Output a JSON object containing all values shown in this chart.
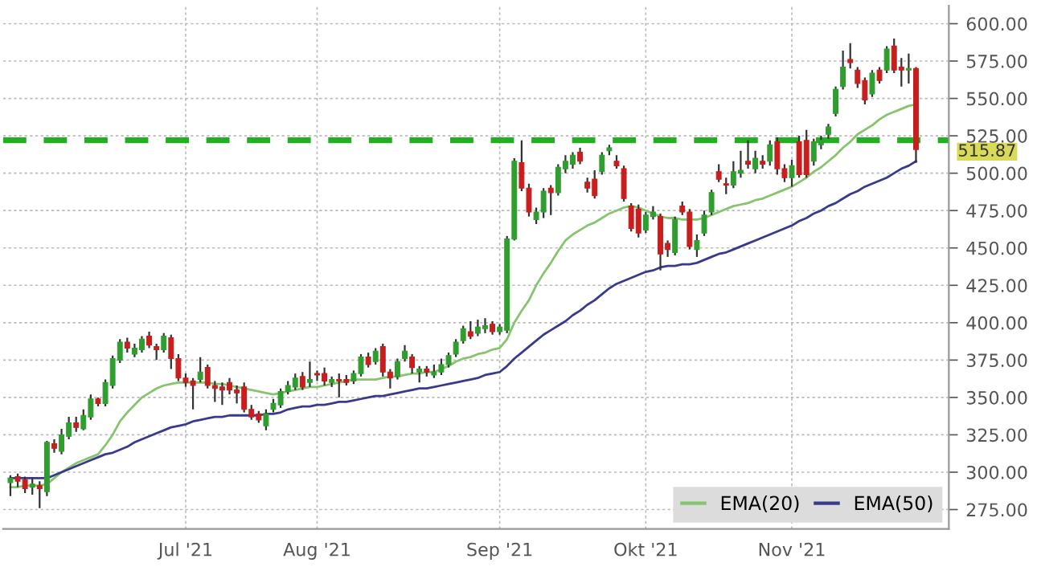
{
  "chart_data": {
    "type": "candlestick",
    "categories": [
      null,
      null,
      null,
      null,
      null,
      null,
      null,
      null,
      null,
      null,
      null,
      null,
      null,
      null,
      null,
      null,
      null,
      null,
      null,
      null,
      null,
      null,
      null,
      null,
      "Jul '21",
      null,
      null,
      null,
      null,
      null,
      null,
      null,
      null,
      null,
      null,
      null,
      null,
      null,
      null,
      null,
      null,
      null,
      "Aug '21",
      null,
      null,
      null,
      null,
      null,
      null,
      null,
      null,
      null,
      null,
      null,
      null,
      null,
      null,
      null,
      null,
      null,
      null,
      null,
      null,
      null,
      null,
      null,
      null,
      "Sep '21",
      null,
      null,
      null,
      null,
      null,
      null,
      null,
      null,
      null,
      null,
      null,
      null,
      null,
      null,
      null,
      null,
      null,
      null,
      null,
      "Okt '21",
      null,
      null,
      null,
      null,
      null,
      null,
      null,
      null,
      null,
      null,
      null,
      null,
      null,
      null,
      null,
      null,
      null,
      null,
      null,
      "Nov '21",
      null,
      null,
      null,
      null,
      null,
      null,
      null,
      null,
      null,
      null,
      null,
      null,
      null,
      null,
      null,
      null,
      null
    ],
    "ohlc": [
      [
        293,
        298,
        284,
        296
      ],
      [
        297,
        299,
        290,
        294
      ],
      [
        295,
        297,
        286,
        289
      ],
      [
        290,
        296,
        285,
        292
      ],
      [
        291,
        294,
        276,
        289
      ],
      [
        287,
        321,
        284,
        320
      ],
      [
        319,
        322,
        313,
        316
      ],
      [
        314,
        329,
        312,
        325
      ],
      [
        324,
        337,
        322,
        333
      ],
      [
        333,
        337,
        327,
        330
      ],
      [
        329,
        342,
        328,
        338
      ],
      [
        337,
        352,
        335,
        349
      ],
      [
        349,
        350,
        344,
        346
      ],
      [
        346,
        362,
        344,
        360
      ],
      [
        358,
        378,
        356,
        376
      ],
      [
        375,
        389,
        373,
        387
      ],
      [
        387,
        390,
        380,
        383
      ],
      [
        379,
        386,
        377,
        383
      ],
      [
        382,
        391,
        380,
        389
      ],
      [
        391,
        394,
        383,
        385
      ],
      [
        384,
        386,
        375,
        382
      ],
      [
        382,
        393,
        380,
        391
      ],
      [
        390,
        392,
        369,
        376
      ],
      [
        376,
        379,
        361,
        363
      ],
      [
        363,
        366,
        357,
        360
      ],
      [
        361,
        363,
        342,
        358
      ],
      [
        362,
        377,
        360,
        367
      ],
      [
        370,
        372,
        356,
        358
      ],
      [
        358,
        361,
        347,
        356
      ],
      [
        357,
        360,
        345,
        355
      ],
      [
        360,
        363,
        352,
        355
      ],
      [
        355,
        358,
        346,
        353
      ],
      [
        357,
        360,
        340,
        342
      ],
      [
        342,
        345,
        335,
        337
      ],
      [
        339,
        341,
        333,
        335
      ],
      [
        331,
        342,
        328,
        339
      ],
      [
        342,
        349,
        340,
        346
      ],
      [
        345,
        356,
        343,
        354
      ],
      [
        354,
        361,
        352,
        358
      ],
      [
        357,
        366,
        355,
        363
      ],
      [
        364,
        367,
        355,
        357
      ],
      [
        360,
        374,
        357,
        362
      ],
      [
        366,
        368,
        361,
        365
      ],
      [
        366,
        370,
        358,
        361
      ],
      [
        360,
        364,
        357,
        362
      ],
      [
        362,
        366,
        350,
        361
      ],
      [
        362,
        365,
        358,
        360
      ],
      [
        361,
        368,
        359,
        366
      ],
      [
        366,
        379,
        364,
        377
      ],
      [
        377,
        380,
        370,
        372
      ],
      [
        374,
        383,
        372,
        381
      ],
      [
        384,
        386,
        364,
        367
      ],
      [
        367,
        369,
        356,
        363
      ],
      [
        364,
        376,
        362,
        374
      ],
      [
        376,
        385,
        374,
        381
      ],
      [
        377,
        379,
        366,
        370
      ],
      [
        367,
        371,
        360,
        369
      ],
      [
        369,
        371,
        364,
        367
      ],
      [
        365,
        372,
        363,
        367
      ],
      [
        367,
        376,
        365,
        372
      ],
      [
        372,
        380,
        370,
        378
      ],
      [
        379,
        389,
        377,
        387
      ],
      [
        388,
        398,
        386,
        396
      ],
      [
        394,
        401,
        389,
        391
      ],
      [
        393,
        402,
        391,
        397
      ],
      [
        396,
        403,
        393,
        398
      ],
      [
        399,
        401,
        392,
        394
      ],
      [
        394,
        399,
        392,
        397
      ],
      [
        395,
        458,
        393,
        456
      ],
      [
        456,
        510,
        455,
        508
      ],
      [
        507,
        522,
        488,
        490
      ],
      [
        490,
        493,
        471,
        474
      ],
      [
        469,
        477,
        466,
        474
      ],
      [
        474,
        490,
        470,
        488
      ],
      [
        490,
        492,
        472,
        487
      ],
      [
        487,
        506,
        485,
        504
      ],
      [
        503,
        512,
        500,
        508
      ],
      [
        506,
        514,
        503,
        512
      ],
      [
        514,
        517,
        506,
        508
      ],
      [
        494,
        497,
        487,
        490
      ],
      [
        496,
        502,
        483,
        485
      ],
      [
        501,
        514,
        499,
        512
      ],
      [
        515,
        519,
        512,
        517
      ],
      [
        508,
        512,
        503,
        505
      ],
      [
        503,
        505,
        481,
        483
      ],
      [
        478,
        480,
        461,
        463
      ],
      [
        476,
        479,
        457,
        460
      ],
      [
        462,
        474,
        460,
        472
      ],
      [
        471,
        478,
        469,
        474
      ],
      [
        471,
        473,
        435,
        446
      ],
      [
        453,
        455,
        444,
        449
      ],
      [
        447,
        471,
        445,
        469
      ],
      [
        478,
        481,
        472,
        474
      ],
      [
        474,
        476,
        449,
        451
      ],
      [
        449,
        459,
        444,
        455
      ],
      [
        460,
        475,
        458,
        472
      ],
      [
        474,
        489,
        472,
        487
      ],
      [
        501,
        506,
        494,
        496
      ],
      [
        493,
        497,
        486,
        492
      ],
      [
        492,
        508,
        490,
        501
      ],
      [
        500,
        515,
        497,
        502
      ],
      [
        508,
        522,
        503,
        506
      ],
      [
        503,
        515,
        500,
        510
      ],
      [
        508,
        512,
        503,
        506
      ],
      [
        508,
        522,
        505,
        519
      ],
      [
        521,
        524,
        499,
        503
      ],
      [
        503,
        506,
        494,
        497
      ],
      [
        497,
        509,
        491,
        505
      ],
      [
        521,
        525,
        497,
        499
      ],
      [
        522,
        529,
        497,
        499
      ],
      [
        508,
        523,
        505,
        521
      ],
      [
        519,
        525,
        516,
        522
      ],
      [
        526,
        533,
        523,
        531
      ],
      [
        540,
        558,
        538,
        556
      ],
      [
        558,
        582,
        556,
        571
      ],
      [
        576,
        587,
        570,
        574
      ],
      [
        569,
        571,
        557,
        560
      ],
      [
        562,
        564,
        546,
        549
      ],
      [
        553,
        569,
        551,
        567
      ],
      [
        569,
        571,
        560,
        562
      ],
      [
        569,
        585,
        567,
        583
      ],
      [
        585,
        590,
        567,
        569
      ],
      [
        571,
        577,
        558,
        569
      ],
      [
        569,
        580,
        560,
        570
      ],
      [
        570,
        571,
        507,
        515.87
      ]
    ],
    "colors": [
      "#2f9e2f",
      "#c81e1e",
      "#c81e1e",
      "#2f9e2f",
      "#c81e1e",
      "#2f9e2f",
      "#c81e1e",
      "#2f9e2f",
      "#2f9e2f",
      "#c81e1e",
      "#2f9e2f",
      "#2f9e2f",
      "#c81e1e",
      "#2f9e2f",
      "#2f9e2f",
      "#2f9e2f",
      "#c81e1e",
      "#2f9e2f",
      "#2f9e2f",
      "#c81e1e",
      "#c81e1e",
      "#2f9e2f",
      "#c81e1e",
      "#c81e1e",
      "#c81e1e",
      "#c81e1e",
      "#2f9e2f",
      "#c81e1e",
      "#c81e1e",
      "#c81e1e",
      "#c81e1e",
      "#c81e1e",
      "#c81e1e",
      "#c81e1e",
      "#c81e1e",
      "#2f9e2f",
      "#2f9e2f",
      "#2f9e2f",
      "#2f9e2f",
      "#2f9e2f",
      "#c81e1e",
      "#2f9e2f",
      "#c81e1e",
      "#c81e1e",
      "#2f9e2f",
      "#c81e1e",
      "#c81e1e",
      "#2f9e2f",
      "#2f9e2f",
      "#c81e1e",
      "#2f9e2f",
      "#c81e1e",
      "#c81e1e",
      "#2f9e2f",
      "#2f9e2f",
      "#c81e1e",
      "#2f9e2f",
      "#c81e1e",
      "#2f9e2f",
      "#2f9e2f",
      "#2f9e2f",
      "#2f9e2f",
      "#2f9e2f",
      "#c81e1e",
      "#2f9e2f",
      "#2f9e2f",
      "#c81e1e",
      "#2f9e2f",
      "#2f9e2f",
      "#2f9e2f",
      "#c81e1e",
      "#c81e1e",
      "#2f9e2f",
      "#2f9e2f",
      "#c81e1e",
      "#2f9e2f",
      "#2f9e2f",
      "#2f9e2f",
      "#c81e1e",
      "#c81e1e",
      "#c81e1e",
      "#2f9e2f",
      "#2f9e2f",
      "#c81e1e",
      "#c81e1e",
      "#c81e1e",
      "#c81e1e",
      "#2f9e2f",
      "#2f9e2f",
      "#c81e1e",
      "#c81e1e",
      "#2f9e2f",
      "#c81e1e",
      "#c81e1e",
      "#2f9e2f",
      "#2f9e2f",
      "#2f9e2f",
      "#c81e1e",
      "#c81e1e",
      "#2f9e2f",
      "#2f9e2f",
      "#c81e1e",
      "#2f9e2f",
      "#c81e1e",
      "#2f9e2f",
      "#c81e1e",
      "#c81e1e",
      "#2f9e2f",
      "#c81e1e",
      "#c81e1e",
      "#2f9e2f",
      "#2f9e2f",
      "#2f9e2f",
      "#2f9e2f",
      "#2f9e2f",
      "#c81e1e",
      "#c81e1e",
      "#c81e1e",
      "#2f9e2f",
      "#c81e1e",
      "#2f9e2f",
      "#c81e1e",
      "#c81e1e",
      "#2f9e2f",
      "#c81e1e"
    ],
    "series": [
      {
        "name": "EMA(20)",
        "type": "line",
        "color": "#86c46e",
        "values": [
          290,
          290,
          291,
          291,
          291,
          292,
          296,
          300,
          303,
          306,
          308,
          310,
          312,
          318,
          325,
          334,
          340,
          345,
          350,
          353,
          356,
          358,
          359,
          360,
          360,
          360,
          360,
          360,
          359,
          359,
          358,
          357,
          356,
          355,
          354,
          353,
          352,
          353,
          354,
          355,
          356,
          357,
          357,
          358,
          359,
          360,
          361,
          362,
          362,
          362,
          362,
          363,
          364,
          364,
          365,
          366,
          366,
          367,
          367,
          369,
          371,
          374,
          376,
          377,
          379,
          380,
          382,
          383,
          389,
          400,
          408,
          415,
          425,
          433,
          440,
          448,
          455,
          459,
          462,
          465,
          467,
          470,
          473,
          475,
          477,
          478,
          477,
          475,
          473,
          471,
          470,
          470,
          469,
          469,
          469,
          470,
          472,
          474,
          476,
          478,
          479,
          480,
          482,
          483,
          485,
          487,
          489,
          491,
          494,
          497,
          501,
          504,
          508,
          512,
          517,
          521,
          526,
          529,
          532,
          536,
          539,
          541,
          543,
          545,
          546
        ]
      },
      {
        "name": "EMA(50)",
        "type": "line",
        "color": "#3a3a8c",
        "values": [
          296,
          296,
          296,
          296,
          296,
          296,
          298,
          300,
          302,
          304,
          306,
          308,
          310,
          312,
          313,
          315,
          317,
          320,
          322,
          324,
          326,
          328,
          330,
          331,
          332,
          334,
          335,
          336,
          337,
          337,
          338,
          338,
          338,
          338,
          338,
          339,
          339,
          340,
          342,
          343,
          344,
          344,
          345,
          345,
          346,
          347,
          347,
          348,
          349,
          350,
          351,
          351,
          352,
          353,
          354,
          355,
          356,
          356,
          357,
          358,
          359,
          360,
          361,
          362,
          363,
          365,
          366,
          367,
          371,
          376,
          380,
          384,
          388,
          392,
          395,
          398,
          401,
          405,
          408,
          412,
          415,
          419,
          423,
          426,
          428,
          430,
          432,
          434,
          435,
          437,
          438,
          438,
          439,
          439,
          440,
          442,
          444,
          446,
          447,
          449,
          451,
          453,
          455,
          457,
          459,
          461,
          463,
          465,
          468,
          470,
          473,
          475,
          478,
          480,
          483,
          486,
          488,
          491,
          493,
          495,
          497,
          500,
          503,
          505,
          508
        ]
      }
    ],
    "ref_lines": [
      {
        "axis": "y",
        "value": 522,
        "color": "#22b022",
        "line_style": "dashed"
      }
    ],
    "annotations": [
      "515.87"
    ],
    "ylim": [
      262,
      612
    ],
    "yticks": [
      {
        "value": 275,
        "label": "275.00"
      },
      {
        "value": 300,
        "label": "300.00"
      },
      {
        "value": 325,
        "label": "325.00"
      },
      {
        "value": 350,
        "label": "350.00"
      },
      {
        "value": 375,
        "label": "375.00"
      },
      {
        "value": 400,
        "label": "400.00"
      },
      {
        "value": 425,
        "label": "425.00"
      },
      {
        "value": 450,
        "label": "450.00"
      },
      {
        "value": 475,
        "label": "475.00"
      },
      {
        "value": 500,
        "label": "500.00"
      },
      {
        "value": 525,
        "label": "525.00"
      },
      {
        "value": 550,
        "label": "550.00"
      },
      {
        "value": 575,
        "label": "575.00"
      },
      {
        "value": 600,
        "label": "600.00"
      }
    ],
    "grid": true,
    "legend": "bottom right"
  }
}
